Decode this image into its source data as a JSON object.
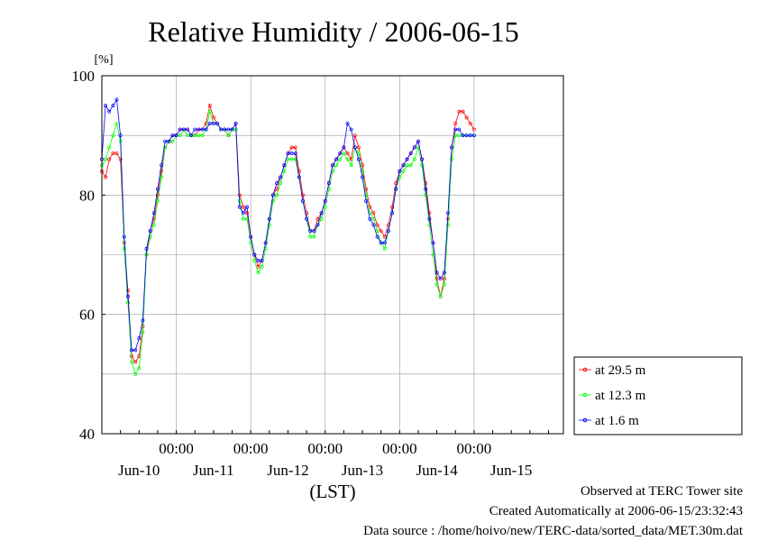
{
  "chart_data": {
    "type": "line",
    "title": "Relative Humidity / 2006-06-15",
    "ylabel": "[%]",
    "xlabel": "(LST)",
    "ylim": [
      40,
      100
    ],
    "yticks": [
      "40",
      "60",
      "80",
      "100"
    ],
    "xlim_days": [
      -1,
      5.2
    ],
    "xtick_day_offsets": [
      0,
      1,
      2,
      3,
      4
    ],
    "xticks": [
      "00:00",
      "00:00",
      "00:00",
      "00:00",
      "00:00"
    ],
    "date_labels": [
      "Jun-10",
      "Jun-11",
      "Jun-12",
      "Jun-13",
      "Jun-14",
      "Jun-15"
    ],
    "grid": true,
    "legend_position": "bottom-right outside",
    "x_days": [
      -1.0,
      -0.95,
      -0.9,
      -0.85,
      -0.8,
      -0.75,
      -0.7,
      -0.65,
      -0.6,
      -0.55,
      -0.5,
      -0.45,
      -0.4,
      -0.35,
      -0.3,
      -0.25,
      -0.2,
      -0.15,
      -0.1,
      -0.05,
      0.0,
      0.05,
      0.1,
      0.15,
      0.2,
      0.25,
      0.3,
      0.35,
      0.4,
      0.45,
      0.5,
      0.55,
      0.6,
      0.65,
      0.7,
      0.75,
      0.8,
      0.85,
      0.9,
      0.95,
      1.0,
      1.05,
      1.1,
      1.15,
      1.2,
      1.25,
      1.3,
      1.35,
      1.4,
      1.45,
      1.5,
      1.55,
      1.6,
      1.65,
      1.7,
      1.75,
      1.8,
      1.85,
      1.9,
      1.95,
      2.0,
      2.05,
      2.1,
      2.15,
      2.2,
      2.25,
      2.3,
      2.35,
      2.4,
      2.45,
      2.5,
      2.55,
      2.6,
      2.65,
      2.7,
      2.75,
      2.8,
      2.85,
      2.9,
      2.95,
      3.0,
      3.05,
      3.1,
      3.15,
      3.2,
      3.25,
      3.3,
      3.35,
      3.4,
      3.45,
      3.5,
      3.55,
      3.6,
      3.65,
      3.7,
      3.75,
      3.8,
      3.85,
      3.9,
      3.95,
      4.0,
      4.05,
      4.1,
      4.15,
      4.2,
      4.25,
      4.3,
      4.35,
      4.4,
      4.45,
      4.5,
      4.55,
      4.6,
      4.65,
      4.7,
      4.75,
      4.8,
      4.85,
      4.9,
      4.95,
      5.0,
      5.05,
      5.1,
      5.15,
      5.2
    ],
    "series": [
      {
        "name": "at 29.5 m",
        "color": "#ff0000",
        "values": [
          84,
          83,
          86,
          87,
          87,
          86,
          72,
          64,
          53,
          52,
          53,
          58,
          70,
          74,
          76,
          80,
          84,
          88,
          89,
          90,
          90,
          91,
          91,
          91,
          90,
          90,
          91,
          91,
          92,
          95,
          93,
          92,
          91,
          91,
          90,
          91,
          92,
          80,
          78,
          77,
          73,
          70,
          68,
          69,
          72,
          76,
          80,
          81,
          83,
          85,
          87,
          88,
          88,
          84,
          80,
          77,
          74,
          74,
          76,
          77,
          79,
          82,
          85,
          86,
          87,
          88,
          87,
          86,
          90,
          88,
          85,
          81,
          78,
          77,
          75,
          74,
          73,
          75,
          78,
          82,
          84,
          85,
          86,
          87,
          88,
          89,
          86,
          82,
          77,
          72,
          66,
          63,
          66,
          76,
          88,
          92,
          94,
          94,
          93,
          92,
          91
        ]
      },
      {
        "name": "at 12.3 m",
        "color": "#00ff00",
        "values": [
          85,
          86,
          88,
          90,
          92,
          89,
          71,
          62,
          52,
          50,
          51,
          57,
          70,
          73,
          75,
          79,
          83,
          88,
          89,
          89,
          90,
          90,
          91,
          90,
          90,
          90,
          90,
          90,
          91,
          94,
          92,
          92,
          91,
          91,
          90,
          91,
          91,
          79,
          76,
          76,
          72,
          69,
          67,
          68,
          71,
          75,
          79,
          80,
          82,
          84,
          86,
          86,
          86,
          83,
          79,
          76,
          73,
          73,
          75,
          76,
          78,
          81,
          84,
          85,
          86,
          87,
          86,
          85,
          88,
          87,
          84,
          80,
          77,
          76,
          74,
          72,
          71,
          74,
          77,
          81,
          83,
          84,
          85,
          85,
          86,
          88,
          85,
          80,
          75,
          70,
          65,
          63,
          65,
          75,
          86,
          90,
          90,
          90,
          90,
          90,
          90
        ]
      },
      {
        "name": "at 1.6 m",
        "color": "#0000ff",
        "values": [
          86,
          95,
          94,
          95,
          96,
          90,
          73,
          63,
          54,
          54,
          56,
          59,
          71,
          74,
          77,
          81,
          85,
          89,
          89,
          90,
          90,
          91,
          91,
          91,
          90,
          91,
          91,
          91,
          91,
          92,
          92,
          92,
          91,
          91,
          91,
          91,
          92,
          78,
          77,
          78,
          73,
          70,
          69,
          69,
          72,
          76,
          80,
          82,
          83,
          85,
          87,
          87,
          87,
          83,
          79,
          76,
          74,
          74,
          75,
          77,
          79,
          82,
          85,
          86,
          87,
          88,
          92,
          91,
          88,
          86,
          83,
          79,
          76,
          75,
          73,
          72,
          72,
          74,
          77,
          81,
          84,
          85,
          86,
          87,
          88,
          89,
          86,
          81,
          76,
          72,
          67,
          66,
          67,
          77,
          88,
          91,
          91,
          90,
          90,
          90,
          90
        ]
      }
    ]
  },
  "footer": {
    "line1": "Observed at TERC Tower site",
    "line2": "Created Automatically at 2006-06-15/23:32:43",
    "line3": "Data source : /home/hoivo/new/TERC-data/sorted_data/MET.30m.dat"
  }
}
